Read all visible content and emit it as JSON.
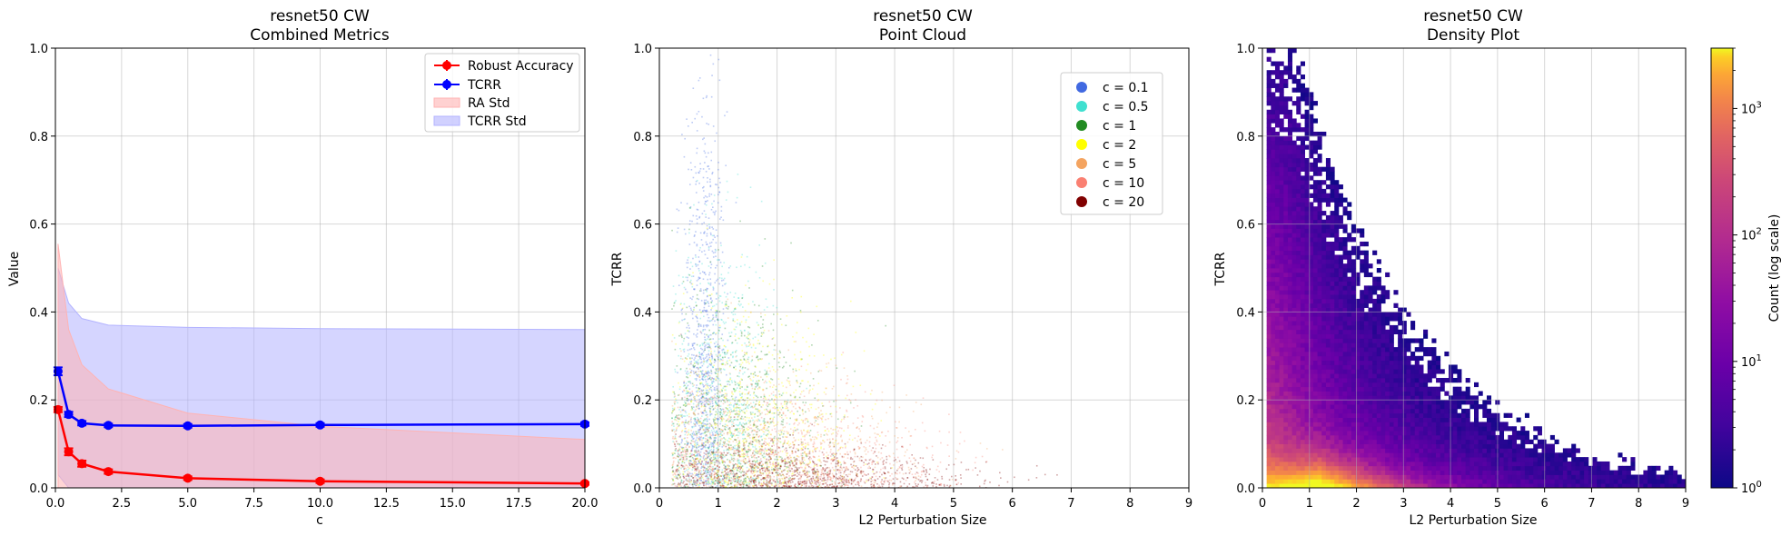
{
  "colors": {
    "robust_accuracy": "#ff0000",
    "tcrr": "#0000ff",
    "ra_std_fill": "#ffb3b3",
    "tcrr_std_fill": "#b3b3ff",
    "cloud": {
      "c = 0.1": "#4169e1",
      "c = 0.5": "#40e0d0",
      "c = 1": "#228b22",
      "c = 2": "#ffff00",
      "c = 5": "#f4a460",
      "c = 10": "#fa8072",
      "c = 20": "#800000"
    }
  },
  "chart_data": [
    {
      "type": "line",
      "title": "resnet50 CW",
      "subtitle": "Combined Metrics",
      "xlabel": "c",
      "ylabel": "Value",
      "xlim": [
        0,
        20
      ],
      "ylim": [
        0,
        1.0
      ],
      "x_ticks": [
        "0.0",
        "2.5",
        "5.0",
        "7.5",
        "10.0",
        "12.5",
        "15.0",
        "17.5",
        "20.0"
      ],
      "y_ticks": [
        "0.0",
        "0.2",
        "0.4",
        "0.6",
        "0.8",
        "1.0"
      ],
      "grid": true,
      "legend_position": "top-right",
      "legend": [
        "Robust Accuracy",
        "TCRR",
        "RA Std",
        "TCRR Std"
      ],
      "x": [
        0.1,
        0.5,
        1,
        2,
        5,
        10,
        20
      ],
      "series": [
        {
          "name": "Robust Accuracy",
          "values": [
            0.178,
            0.082,
            0.055,
            0.037,
            0.022,
            0.015,
            0.01
          ],
          "err": [
            0.006,
            0.008,
            0.007,
            0.005,
            0.004,
            0.004,
            0.003
          ],
          "std_upper": [
            0.555,
            0.36,
            0.28,
            0.225,
            0.17,
            0.14,
            0.11
          ],
          "std_lower": [
            0,
            0,
            0,
            0,
            0,
            0,
            0
          ]
        },
        {
          "name": "TCRR",
          "values": [
            0.265,
            0.167,
            0.147,
            0.142,
            0.141,
            0.143,
            0.145
          ],
          "err": [
            0.009,
            0.006,
            0.005,
            0.004,
            0.004,
            0.004,
            0.004
          ],
          "std_upper": [
            0.5,
            0.42,
            0.385,
            0.37,
            0.365,
            0.362,
            0.36
          ],
          "std_lower": [
            0.03,
            0,
            0,
            0,
            0,
            0,
            0
          ]
        }
      ]
    },
    {
      "type": "scatter",
      "title": "resnet50 CW",
      "subtitle": "Point Cloud",
      "xlabel": "L2 Perturbation Size",
      "ylabel": "TCRR",
      "xlim": [
        0,
        9
      ],
      "ylim": [
        0,
        1.0
      ],
      "x_ticks": [
        "0",
        "1",
        "2",
        "3",
        "4",
        "5",
        "6",
        "7",
        "8",
        "9"
      ],
      "y_ticks": [
        "0.0",
        "0.2",
        "0.4",
        "0.6",
        "0.8",
        "1.0"
      ],
      "grid": true,
      "legend_position": "top-right",
      "legend": [
        "c = 0.1",
        "c = 0.5",
        "c = 1",
        "c = 2",
        "c = 5",
        "c = 10",
        "c = 20"
      ]
    },
    {
      "type": "heatmap",
      "title": "resnet50 CW",
      "subtitle": "Density Plot",
      "xlabel": "L2 Perturbation Size",
      "ylabel": "TCRR",
      "xlim": [
        0,
        9
      ],
      "ylim": [
        0,
        1.0
      ],
      "x_ticks": [
        "0",
        "1",
        "2",
        "3",
        "4",
        "5",
        "6",
        "7",
        "8",
        "9"
      ],
      "y_ticks": [
        "0.0",
        "0.2",
        "0.4",
        "0.6",
        "0.8",
        "1.0"
      ],
      "grid": true,
      "colorbar_label": "Count (log scale)",
      "colorbar_scale": "log",
      "colorbar_range": [
        1,
        3000
      ],
      "colorbar_ticks": [
        {
          "base": "10",
          "exp": "0",
          "value": 1
        },
        {
          "base": "10",
          "exp": "1",
          "value": 10
        },
        {
          "base": "10",
          "exp": "2",
          "value": 100
        },
        {
          "base": "10",
          "exp": "3",
          "value": 1000
        }
      ],
      "colormap": "plasma"
    }
  ]
}
